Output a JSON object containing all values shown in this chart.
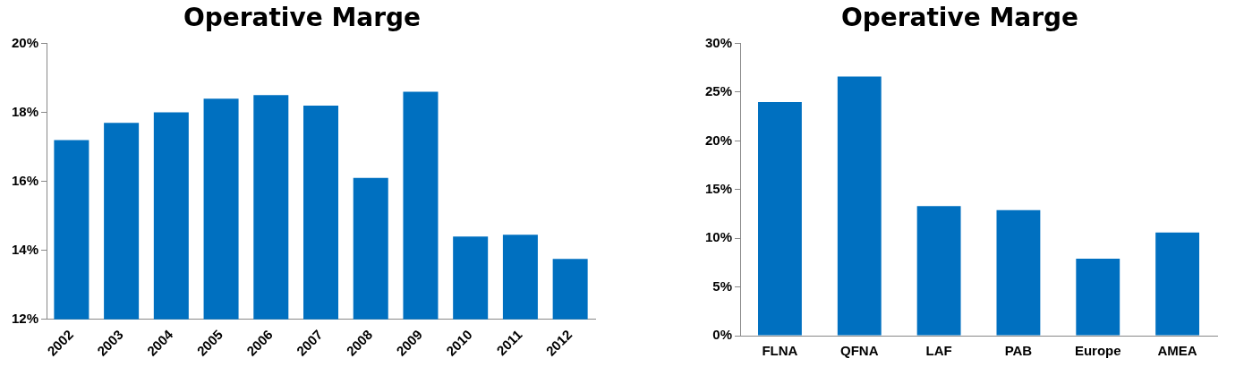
{
  "chart_data": [
    {
      "type": "bar",
      "title": "Operative Marge",
      "categories": [
        "2002",
        "2003",
        "2004",
        "2005",
        "2006",
        "2007",
        "2008",
        "2009",
        "2010",
        "2011",
        "2012"
      ],
      "series": [
        {
          "color": "#0070c0",
          "values": [
            17.2,
            17.7,
            18.0,
            18.4,
            18.5,
            18.2,
            16.1,
            18.6,
            14.4,
            14.45,
            13.75
          ]
        }
      ],
      "ylim": [
        12,
        20
      ],
      "yticks": [
        {
          "value": 12,
          "label": "12%"
        },
        {
          "value": 14,
          "label": "14%"
        },
        {
          "value": 16,
          "label": "16%"
        },
        {
          "value": 18,
          "label": "18%"
        },
        {
          "value": 20,
          "label": "20%"
        }
      ],
      "grid": false,
      "legend": false
    },
    {
      "type": "bar",
      "title": "Operative Marge",
      "categories": [
        "FLNA",
        "QFNA",
        "LAF",
        "PAB",
        "Europe",
        "AMEA"
      ],
      "series": [
        {
          "color": "#0070c0",
          "values": [
            24.0,
            26.6,
            13.3,
            12.9,
            7.9,
            10.6
          ]
        }
      ],
      "ylim": [
        0,
        30
      ],
      "yticks": [
        {
          "value": 0,
          "label": "0%"
        },
        {
          "value": 5,
          "label": "5%"
        },
        {
          "value": 10,
          "label": "10%"
        },
        {
          "value": 15,
          "label": "15%"
        },
        {
          "value": 20,
          "label": "20%"
        },
        {
          "value": 25,
          "label": "25%"
        },
        {
          "value": 30,
          "label": "30%"
        }
      ],
      "grid": false,
      "legend": false
    }
  ]
}
